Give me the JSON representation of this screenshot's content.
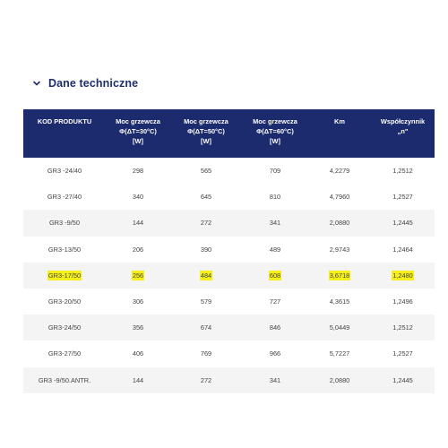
{
  "section": {
    "title": "Dane techniczne",
    "icon": "chevron-down-icon"
  },
  "colors": {
    "header_bg": "#1c2b6e",
    "title": "#1f2f6b",
    "highlight": "#f6f01a",
    "stripe": "#f4f4f4"
  },
  "table": {
    "headers": [
      [
        "KOD PRODUKTU"
      ],
      [
        "Moc grzewcza",
        "Φ(ΔT=30°C)",
        "[W]"
      ],
      [
        "Moc grzewcza",
        "Φ(ΔT=50°C)",
        "[W]"
      ],
      [
        "Moc grzewcza",
        "Φ(ΔT=60°C)",
        "[W]"
      ],
      [
        "Km"
      ],
      [
        "Współczynnik",
        "„n\""
      ]
    ],
    "rows": [
      {
        "cells": [
          "GR3 -24/40",
          "298",
          "565",
          "709",
          "4,2279",
          "1,2512"
        ],
        "highlighted": false
      },
      {
        "cells": [
          "GR3 -27/40",
          "340",
          "645",
          "810",
          "4,7960",
          "1,2527"
        ],
        "highlighted": false
      },
      {
        "cells": [
          "GR3 -9/50",
          "144",
          "272",
          "341",
          "2,0880",
          "1,2445"
        ],
        "highlighted": false
      },
      {
        "cells": [
          "GR3-13/50",
          "206",
          "390",
          "489",
          "2,9743",
          "1,2464"
        ],
        "highlighted": false
      },
      {
        "cells": [
          "GR3-17/50",
          "256",
          "484",
          "608",
          "3,6718",
          "1,2480"
        ],
        "highlighted": true
      },
      {
        "cells": [
          "GR3-20/50",
          "306",
          "579",
          "727",
          "4,3615",
          "1,2496"
        ],
        "highlighted": false
      },
      {
        "cells": [
          "GR3-24/50",
          "356",
          "674",
          "846",
          "5,0449",
          "1,2512"
        ],
        "highlighted": false
      },
      {
        "cells": [
          "GR3-27/50",
          "406",
          "769",
          "966",
          "5,7227",
          "1,2527"
        ],
        "highlighted": false
      },
      {
        "cells": [
          "GR3 -9/50.ANTR.",
          "144",
          "272",
          "341",
          "2,0880",
          "1,2445"
        ],
        "highlighted": false
      }
    ]
  }
}
